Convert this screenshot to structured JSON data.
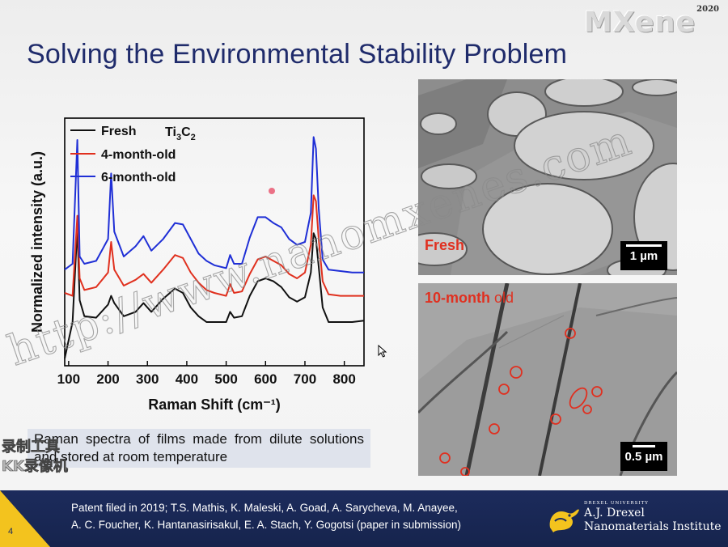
{
  "slide": {
    "title": "Solving the Environmental Stability Problem",
    "page_number": "4",
    "logo": {
      "word": "MXene",
      "year": "2020"
    },
    "caption": "Raman spectra of films made from dilute solutions and stored at room temperature"
  },
  "chart_data": {
    "type": "line",
    "title": "",
    "xlabel": "Raman Shift (cm⁻¹)",
    "ylabel": "Normalized intensity (a.u.)",
    "xlim": [
      90,
      850
    ],
    "xticks": [
      "100",
      "200",
      "300",
      "400",
      "500",
      "600",
      "700",
      "800"
    ],
    "material_label": "Ti3C2",
    "legend_position": "top-left",
    "x": [
      90,
      110,
      122,
      128,
      140,
      170,
      200,
      208,
      216,
      240,
      270,
      290,
      310,
      340,
      370,
      390,
      410,
      430,
      450,
      470,
      500,
      510,
      520,
      540,
      560,
      580,
      600,
      620,
      640,
      660,
      680,
      700,
      715,
      722,
      728,
      735,
      745,
      760,
      790,
      820,
      850
    ],
    "series": [
      {
        "name": "Fresh",
        "color": "#111111",
        "values": [
          0.05,
          0.3,
          0.95,
          0.45,
          0.34,
          0.33,
          0.42,
          0.48,
          0.43,
          0.34,
          0.37,
          0.43,
          0.37,
          0.46,
          0.53,
          0.5,
          0.4,
          0.34,
          0.3,
          0.3,
          0.3,
          0.37,
          0.33,
          0.34,
          0.48,
          0.58,
          0.6,
          0.58,
          0.54,
          0.47,
          0.44,
          0.47,
          0.64,
          0.91,
          0.87,
          0.68,
          0.4,
          0.3,
          0.3,
          0.3,
          0.31
        ]
      },
      {
        "name": "4-month-old",
        "color": "#e0301e",
        "values": [
          0.5,
          0.48,
          1.03,
          0.6,
          0.52,
          0.54,
          0.64,
          0.85,
          0.66,
          0.55,
          0.59,
          0.63,
          0.57,
          0.66,
          0.76,
          0.74,
          0.64,
          0.57,
          0.52,
          0.5,
          0.48,
          0.56,
          0.5,
          0.51,
          0.63,
          0.73,
          0.75,
          0.72,
          0.69,
          0.63,
          0.6,
          0.64,
          0.83,
          1.17,
          1.13,
          0.87,
          0.58,
          0.49,
          0.48,
          0.48,
          0.48
        ]
      },
      {
        "name": "6-month-old",
        "color": "#1f2fd6",
        "values": [
          0.66,
          0.7,
          1.55,
          0.75,
          0.7,
          0.72,
          0.87,
          1.32,
          0.92,
          0.75,
          0.82,
          0.89,
          0.79,
          0.87,
          0.98,
          0.97,
          0.87,
          0.77,
          0.72,
          0.69,
          0.67,
          0.76,
          0.7,
          0.7,
          0.88,
          1.02,
          1.02,
          0.98,
          0.95,
          0.87,
          0.83,
          0.85,
          1.05,
          1.57,
          1.49,
          1.08,
          0.73,
          0.66,
          0.65,
          0.64,
          0.64
        ]
      }
    ]
  },
  "tem": {
    "top": {
      "label": "Fresh",
      "scale": "1 µm"
    },
    "bottom": {
      "label_bold": "10-month",
      "label_rest": " old",
      "scale": "0.5 µm"
    }
  },
  "footer": {
    "line1": "Patent filed in 2019; T.S. Mathis, K. Maleski, A. Goad, A. Sarycheva, M. Anayee,",
    "line2": "A. C. Foucher, K. Hantanasirisakul, E. A. Stach, Y. Gogotsi (paper in submission)",
    "institute_line1": "A.J. Drexel",
    "institute_line2": "Nanomaterials Institute",
    "university": "DREXEL UNIVERSITY"
  },
  "overlay": {
    "watermark": "http://www.nanomxenes.com",
    "recorder_line1": "录制工具",
    "recorder_line2": "KK录像机"
  },
  "colors": {
    "title": "#1f2b6b",
    "footer": "#1c2b5c",
    "accent": "#f3c31e",
    "label_red": "#e03020"
  },
  "icons": [
    "mouse-cursor-icon",
    "drexel-dragon-icon"
  ]
}
